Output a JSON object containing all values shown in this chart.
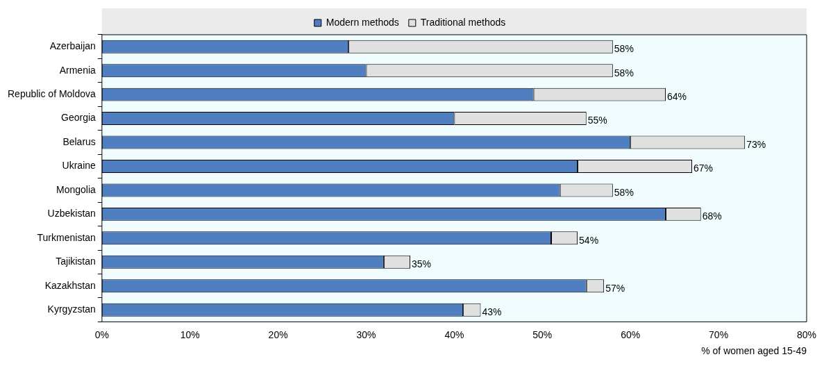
{
  "chart_data": {
    "type": "bar",
    "orientation": "horizontal",
    "stacked": true,
    "categories": [
      "Azerbaijan",
      "Armenia",
      "Republic of Moldova",
      "Georgia",
      "Belarus",
      "Ukraine",
      "Mongolia",
      "Uzbekistan",
      "Turkmenistan",
      "Tajikistan",
      "Kazakhstan",
      "Kyrgyzstan"
    ],
    "series": [
      {
        "name": "Modern methods",
        "color": "#4f7fc0",
        "values": [
          28,
          30,
          49,
          40,
          60,
          54,
          52,
          64,
          51,
          32,
          55,
          41
        ]
      },
      {
        "name": "Traditional methods",
        "color": "#e0e0e0",
        "values": [
          30,
          28,
          15,
          15,
          13,
          13,
          6,
          4,
          3,
          3,
          2,
          2
        ]
      }
    ],
    "totals": [
      "58%",
      "58%",
      "64%",
      "55%",
      "73%",
      "67%",
      "58%",
      "68%",
      "54%",
      "35%",
      "57%",
      "43%"
    ],
    "xlim": [
      0,
      80
    ],
    "xticks": [
      {
        "value": 0,
        "label": "0%"
      },
      {
        "value": 10,
        "label": "10%"
      },
      {
        "value": 20,
        "label": "20%"
      },
      {
        "value": 30,
        "label": "30%"
      },
      {
        "value": 40,
        "label": "40%"
      },
      {
        "value": 50,
        "label": "50%"
      },
      {
        "value": 60,
        "label": "60%"
      },
      {
        "value": 70,
        "label": "70%"
      },
      {
        "value": 80,
        "label": "80%"
      }
    ],
    "xlabel": "% of women aged 15-49",
    "grid": false,
    "legend": "top"
  }
}
